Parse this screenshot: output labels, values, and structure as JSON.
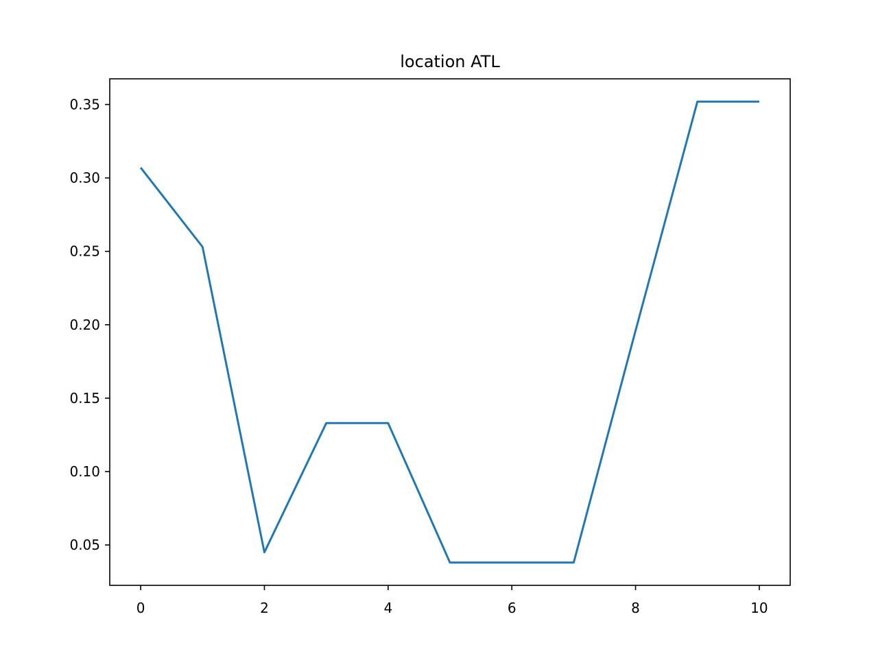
{
  "chart_data": {
    "type": "line",
    "title": "location ATL",
    "xlabel": "",
    "ylabel": "",
    "xlim": [
      -0.5,
      10.5
    ],
    "ylim": [
      0.0225,
      0.3675
    ],
    "x_ticks": [
      0,
      2,
      4,
      6,
      8,
      10
    ],
    "x_tick_labels": [
      "0",
      "2",
      "4",
      "6",
      "8",
      "10"
    ],
    "y_ticks": [
      0.05,
      0.1,
      0.15,
      0.2,
      0.25,
      0.3,
      0.35
    ],
    "y_tick_labels": [
      "0.05",
      "0.10",
      "0.15",
      "0.20",
      "0.25",
      "0.30",
      "0.35"
    ],
    "grid": false,
    "series": [
      {
        "color": "#1f77b4",
        "x": [
          0,
          1,
          2,
          3,
          4,
          5,
          6,
          7,
          8,
          9,
          10
        ],
        "y": [
          0.307,
          0.253,
          0.045,
          0.133,
          0.133,
          0.038,
          0.038,
          0.038,
          0.196,
          0.352,
          0.352
        ]
      }
    ]
  }
}
